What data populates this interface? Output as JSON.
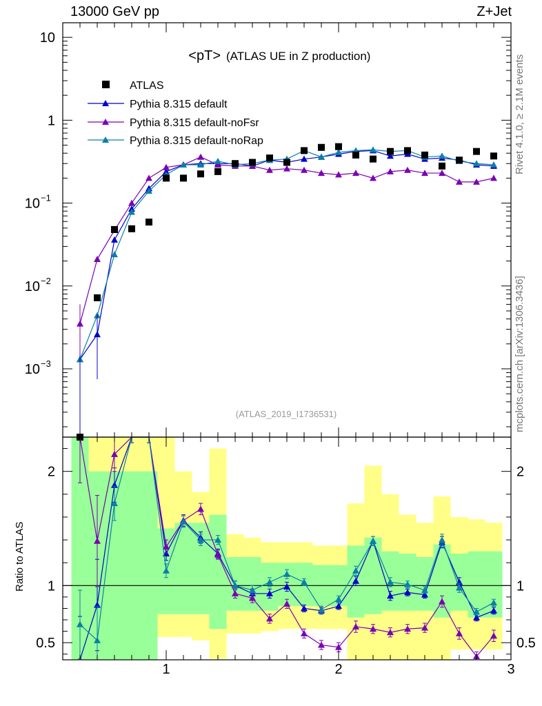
{
  "header": {
    "left": "13000 GeV pp",
    "right": "Z+Jet"
  },
  "side_labels": {
    "rivet": "Rivet 4.1.0, ≥ 2.1M events",
    "mcplots": "mcplots.cern.ch [arXiv:1306.3436]"
  },
  "chart_data": {
    "type": "scatter",
    "title": "<pT>",
    "subtitle": "(ATLAS UE in Z production)",
    "analysis_tag": "(ATLAS_2019_I1736531)",
    "yscale": "log",
    "ylim": [
      0.00015,
      15
    ],
    "xlim": [
      0.4,
      3.0
    ],
    "y_ticks": [
      {
        "value": 10,
        "label": "10",
        "sup": ""
      },
      {
        "value": 1,
        "label": "1",
        "sup": ""
      },
      {
        "value": 0.1,
        "label": "10",
        "sup": "−1"
      },
      {
        "value": 0.01,
        "label": "10",
        "sup": "−2"
      },
      {
        "value": 0.001,
        "label": "10",
        "sup": "−3"
      }
    ],
    "x_ticks": [
      {
        "value": 1,
        "label": "1"
      },
      {
        "value": 2,
        "label": "2"
      },
      {
        "value": 3,
        "label": "3"
      }
    ],
    "legend": [
      "ATLAS",
      "Pythia 8.315 default",
      "Pythia 8.315 default-noFsr",
      "Pythia 8.315 default-noRap"
    ],
    "legend_position": "top-left",
    "x": [
      0.5,
      0.6,
      0.7,
      0.8,
      0.9,
      1.0,
      1.1,
      1.2,
      1.3,
      1.4,
      1.5,
      1.6,
      1.7,
      1.8,
      1.9,
      2.0,
      2.1,
      2.2,
      2.3,
      2.4,
      2.5,
      2.6,
      2.7,
      2.8,
      2.9
    ],
    "data": {
      "name": "ATLAS",
      "color": "#000000",
      "values": [
        0.00015,
        0.0072,
        0.048,
        0.049,
        0.059,
        0.2,
        0.2,
        0.225,
        0.24,
        0.3,
        0.31,
        0.35,
        0.31,
        0.43,
        0.47,
        0.48,
        0.38,
        0.34,
        0.42,
        0.43,
        0.38,
        0.28,
        0.33,
        0.42,
        0.37
      ]
    },
    "series": [
      {
        "name": "Pythia 8.315 default",
        "color": "#0000cc",
        "values": [
          0.0013,
          0.0026,
          0.036,
          0.085,
          0.15,
          0.24,
          0.29,
          0.3,
          0.3,
          0.3,
          0.28,
          0.33,
          0.31,
          0.34,
          0.36,
          0.39,
          0.42,
          0.43,
          0.37,
          0.39,
          0.34,
          0.35,
          0.33,
          0.29,
          0.28
        ]
      },
      {
        "name": "Pythia 8.315 default-noFsr",
        "color": "#7b00b4",
        "values": [
          0.0035,
          0.021,
          0.047,
          0.1,
          0.2,
          0.27,
          0.29,
          0.36,
          0.29,
          0.28,
          0.28,
          0.25,
          0.26,
          0.25,
          0.23,
          0.22,
          0.23,
          0.2,
          0.24,
          0.25,
          0.23,
          0.23,
          0.18,
          0.18,
          0.2
        ]
      },
      {
        "name": "Pythia 8.315 default-noRap",
        "color": "#0a7fa8",
        "values": [
          0.0013,
          0.0044,
          0.024,
          0.078,
          0.14,
          0.22,
          0.29,
          0.29,
          0.32,
          0.29,
          0.3,
          0.33,
          0.34,
          0.43,
          0.36,
          0.41,
          0.43,
          0.44,
          0.42,
          0.43,
          0.36,
          0.37,
          0.32,
          0.3,
          0.29
        ]
      }
    ],
    "ratio": {
      "ylabel": "Ratio to ATLAS",
      "ylim": [
        0.35,
        2.3
      ],
      "y_ticks": [
        {
          "value": 2,
          "label": "2"
        },
        {
          "value": 1,
          "label": "1"
        },
        {
          "value": 0.5,
          "label": "0.5"
        }
      ],
      "band_green": [
        [
          0.5,
          0.35,
          2.3
        ],
        [
          0.6,
          0.35,
          2.0
        ],
        [
          0.7,
          0.35,
          2.0
        ],
        [
          0.8,
          0.35,
          2.0
        ],
        [
          0.9,
          0.35,
          2.0
        ],
        [
          1.0,
          0.75,
          1.5
        ],
        [
          1.1,
          0.75,
          1.55
        ],
        [
          1.2,
          0.75,
          1.55
        ],
        [
          1.3,
          0.62,
          1.62
        ],
        [
          1.4,
          0.78,
          1.25
        ],
        [
          1.5,
          0.78,
          1.25
        ],
        [
          1.6,
          0.78,
          1.2
        ],
        [
          1.7,
          0.82,
          1.2
        ],
        [
          1.8,
          0.82,
          1.2
        ],
        [
          1.9,
          0.82,
          1.18
        ],
        [
          2.0,
          0.82,
          1.18
        ],
        [
          2.1,
          0.72,
          1.35
        ],
        [
          2.2,
          0.75,
          1.42
        ],
        [
          2.3,
          0.78,
          1.3
        ],
        [
          2.4,
          0.78,
          1.28
        ],
        [
          2.5,
          0.78,
          1.25
        ],
        [
          2.6,
          0.72,
          1.36
        ],
        [
          2.7,
          0.78,
          1.28
        ],
        [
          2.8,
          0.72,
          1.3
        ],
        [
          2.9,
          0.72,
          1.3
        ]
      ],
      "band_yellow": [
        [
          0.5,
          0.35,
          2.3
        ],
        [
          0.6,
          0.35,
          2.3
        ],
        [
          0.7,
          0.35,
          2.3
        ],
        [
          0.8,
          0.35,
          2.3
        ],
        [
          0.9,
          0.35,
          2.3
        ],
        [
          1.0,
          0.55,
          2.3
        ],
        [
          1.1,
          0.55,
          2.0
        ],
        [
          1.2,
          0.52,
          1.82
        ],
        [
          1.3,
          0.36,
          2.2
        ],
        [
          1.4,
          0.58,
          1.45
        ],
        [
          1.5,
          0.58,
          1.42
        ],
        [
          1.6,
          0.6,
          1.38
        ],
        [
          1.7,
          0.62,
          1.38
        ],
        [
          1.8,
          0.62,
          1.38
        ],
        [
          1.9,
          0.62,
          1.35
        ],
        [
          2.0,
          0.62,
          1.35
        ],
        [
          2.1,
          0.35,
          1.72
        ],
        [
          2.2,
          0.35,
          2.05
        ],
        [
          2.3,
          0.35,
          1.8
        ],
        [
          2.4,
          0.35,
          1.62
        ],
        [
          2.5,
          0.35,
          1.55
        ],
        [
          2.6,
          0.35,
          1.78
        ],
        [
          2.7,
          0.44,
          1.6
        ],
        [
          2.8,
          0.44,
          1.58
        ],
        [
          2.9,
          0.44,
          1.55
        ]
      ],
      "series": [
        {
          "name": "Pythia 8.315 default",
          "color": "#0000cc",
          "values": [
            0.33,
            0.83,
            1.88,
            2.3,
            2.3,
            1.28,
            1.57,
            1.42,
            1.28,
            1.0,
            0.93,
            0.93,
            0.99,
            0.8,
            0.78,
            0.82,
            1.04,
            1.39,
            0.91,
            0.94,
            0.92,
            1.38,
            1.03,
            0.72,
            0.78
          ],
          "errors": [
            0.4,
            0.4,
            0.15,
            0.05,
            0.05,
            0.06,
            0.05,
            0.05,
            0.04,
            0.04,
            0.04,
            0.04,
            0.04,
            0.03,
            0.03,
            0.03,
            0.04,
            0.04,
            0.04,
            0.03,
            0.03,
            0.05,
            0.04,
            0.03,
            0.03
          ]
        },
        {
          "name": "Pythia 8.315 default-noFsr",
          "color": "#7b00b4",
          "values": [
            2.3,
            1.39,
            2.15,
            2.3,
            2.3,
            1.34,
            1.57,
            1.67,
            1.27,
            0.93,
            0.89,
            0.71,
            0.84,
            0.58,
            0.48,
            0.46,
            0.64,
            0.62,
            0.59,
            0.62,
            0.63,
            0.86,
            0.58,
            0.38,
            0.56
          ],
          "errors": [
            0.4,
            0.4,
            0.15,
            0.05,
            0.05,
            0.06,
            0.05,
            0.05,
            0.04,
            0.04,
            0.04,
            0.04,
            0.04,
            0.04,
            0.04,
            0.04,
            0.05,
            0.04,
            0.04,
            0.04,
            0.04,
            0.05,
            0.05,
            0.04,
            0.05
          ]
        },
        {
          "name": "Pythia 8.315 default-noRap",
          "color": "#0a7fa8",
          "values": [
            0.66,
            0.52,
            1.72,
            2.3,
            2.3,
            1.13,
            1.56,
            1.4,
            1.4,
            1.0,
            0.96,
            1.03,
            1.1,
            1.03,
            0.79,
            0.88,
            1.13,
            1.39,
            1.03,
            1.01,
            0.96,
            1.4,
            0.98,
            0.77,
            0.85
          ],
          "errors": [
            0.3,
            0.3,
            0.15,
            0.05,
            0.05,
            0.06,
            0.05,
            0.05,
            0.04,
            0.04,
            0.04,
            0.04,
            0.04,
            0.03,
            0.03,
            0.03,
            0.04,
            0.04,
            0.04,
            0.03,
            0.03,
            0.05,
            0.04,
            0.03,
            0.03
          ]
        }
      ]
    }
  }
}
